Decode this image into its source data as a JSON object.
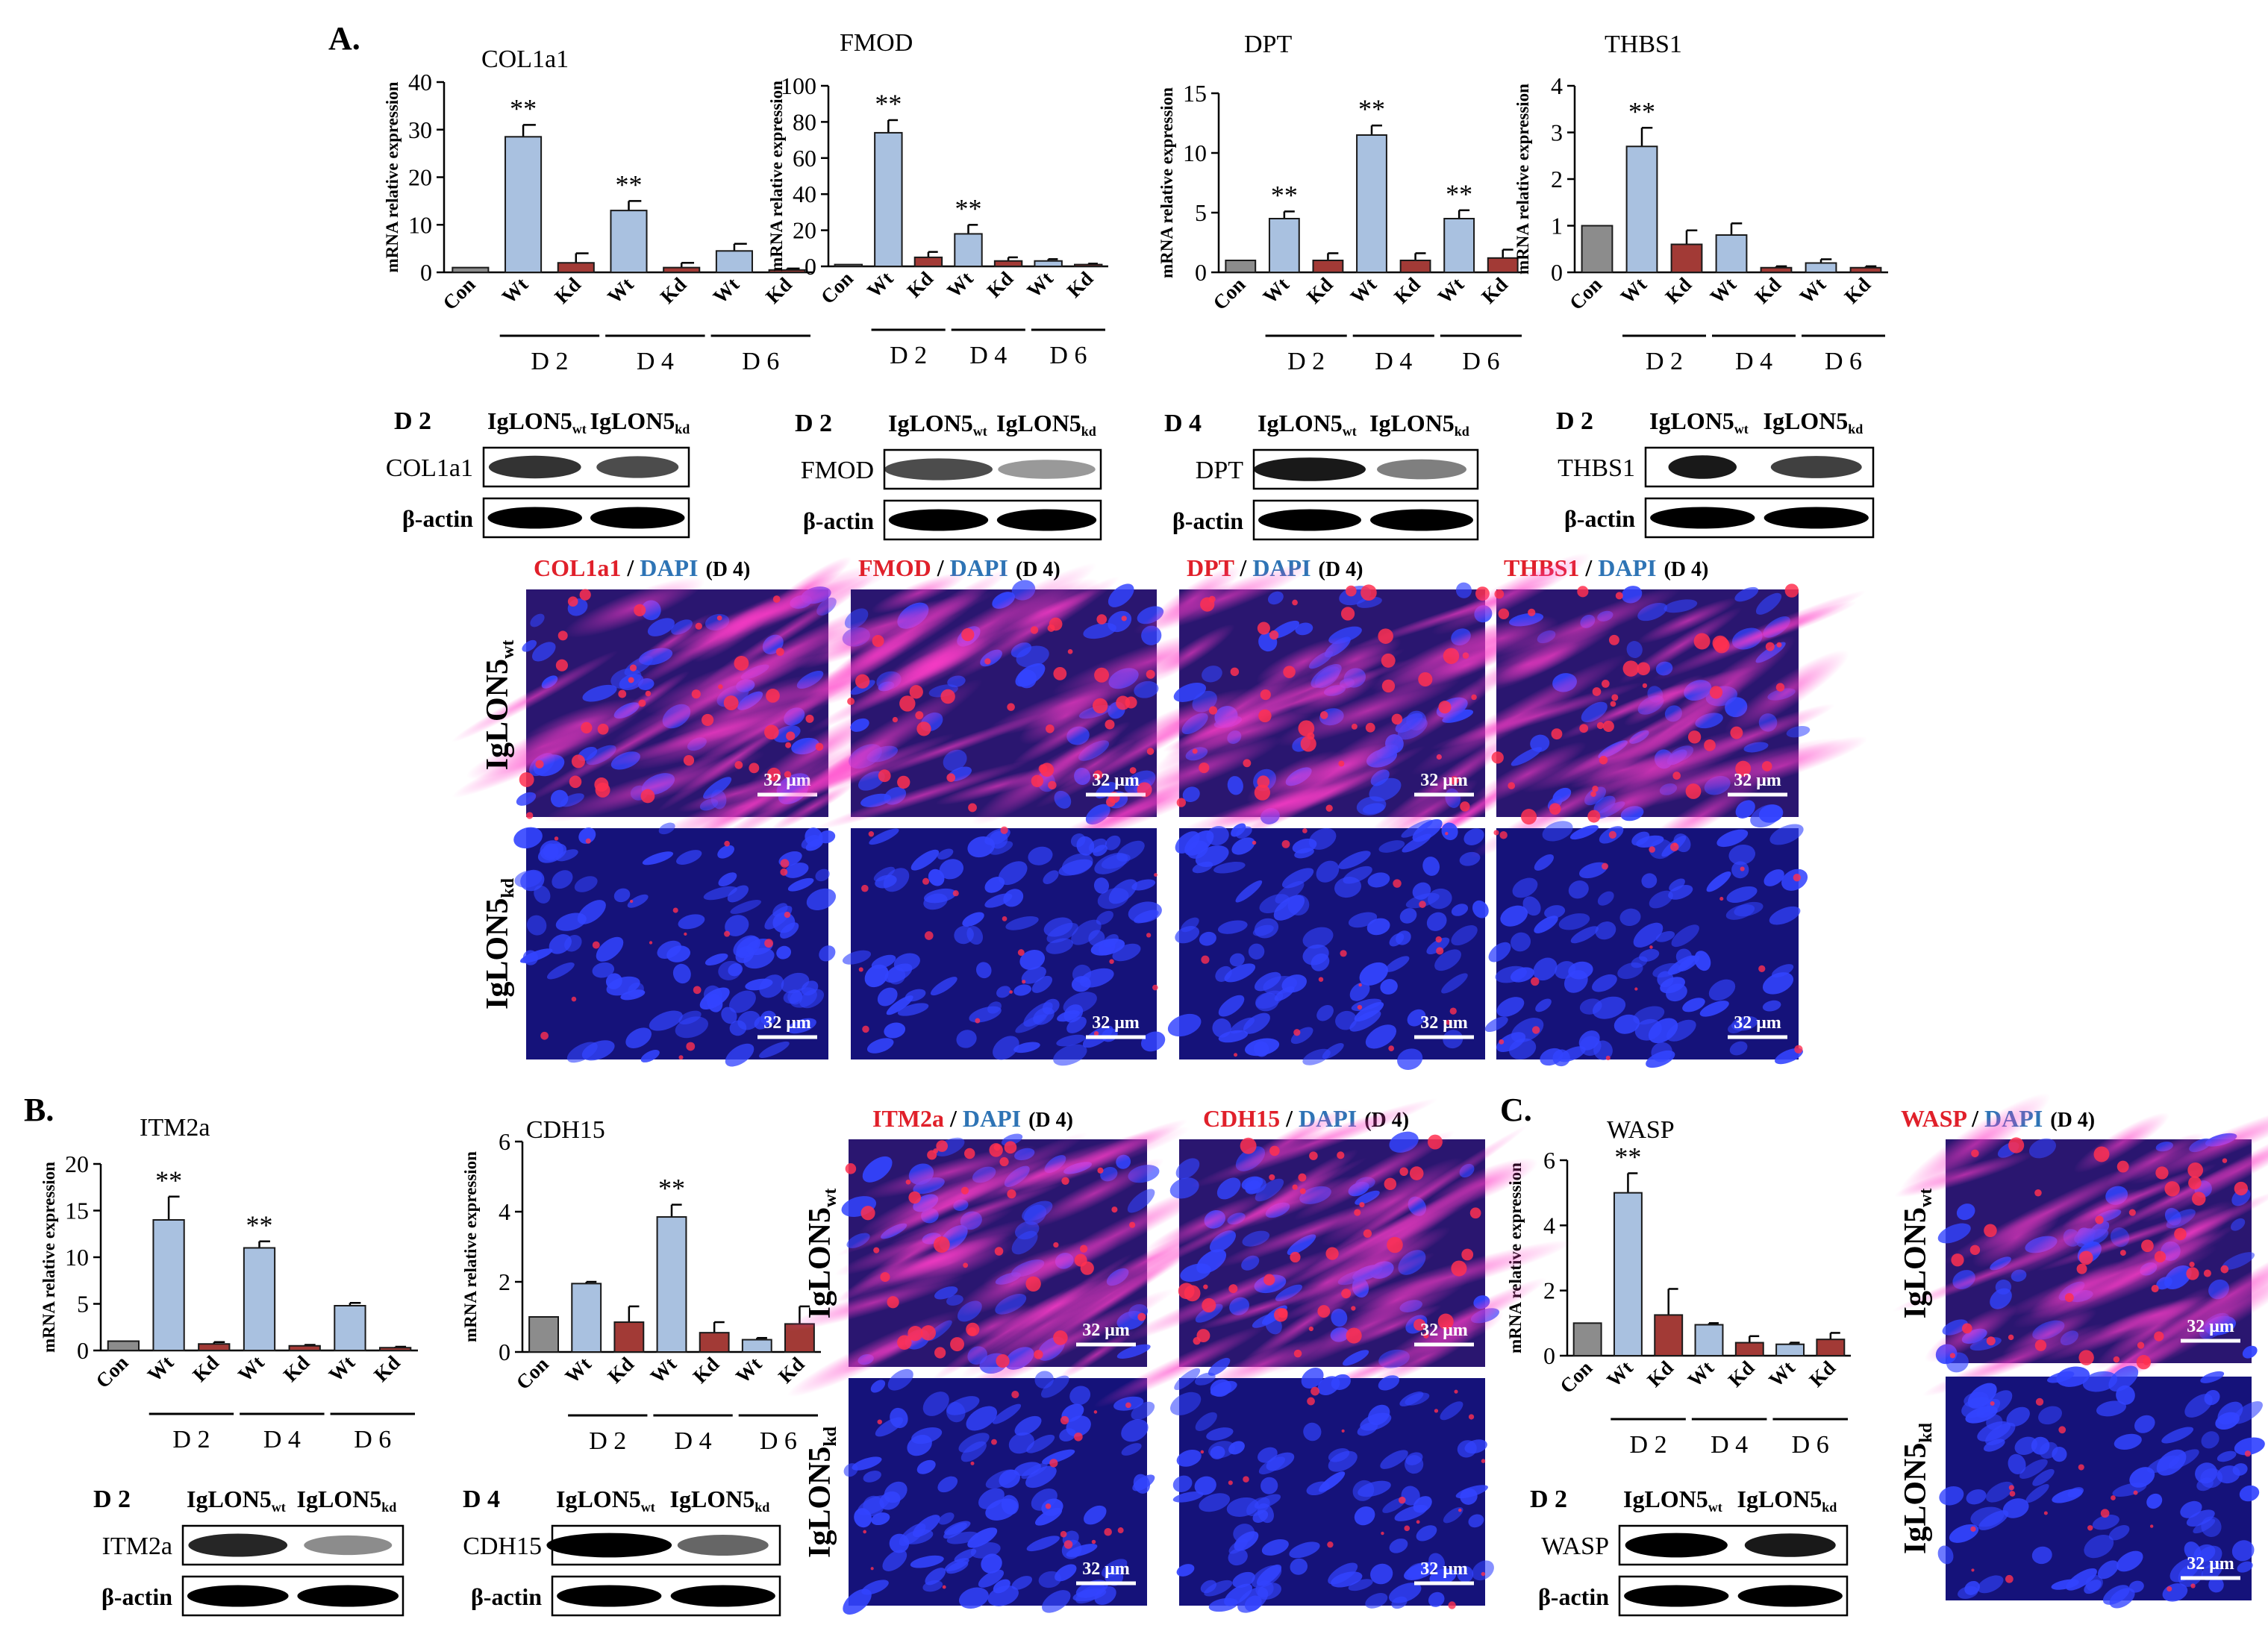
{
  "panels": [
    {
      "label": "A."
    },
    {
      "label": "B."
    },
    {
      "label": "C."
    }
  ],
  "common": {
    "y_axis_label": "mRNA relative expression",
    "categories": [
      "Con",
      "Wt",
      "Kd",
      "Wt",
      "Kd",
      "Wt",
      "Kd"
    ],
    "day_groups": [
      "D 2",
      "D 4",
      "D 6"
    ],
    "significance": "**",
    "beta_actin": "β-actin",
    "scale_bar": "32 μm",
    "wt_label": {
      "base": "IgLON5",
      "sub": "wt"
    },
    "kd_label": {
      "base": "IgLON5",
      "sub": "kd"
    },
    "stain_sep": " / ",
    "dapi": "DAPI",
    "stain_day": "(D 4)",
    "colors": {
      "con": "#8c8c8c",
      "wt": "#a9c1e0",
      "kd": "#a23a36",
      "stain_red": "#e0202a",
      "stain_blue": "#2e74b5"
    }
  },
  "chart_data": [
    {
      "type": "bar",
      "title": "COL1a1",
      "ylabel": "mRNA relative expression",
      "ylim": [
        0,
        40
      ],
      "yticks": [
        0,
        10,
        20,
        30,
        40
      ],
      "categories": [
        "Con",
        "Wt",
        "Kd",
        "Wt",
        "Kd",
        "Wt",
        "Kd"
      ],
      "groups": [
        "D 2",
        "D 4",
        "D 6"
      ],
      "values": [
        1,
        28.5,
        2,
        13,
        1,
        4.5,
        0.5
      ],
      "errors": [
        0,
        2.5,
        2,
        2,
        1,
        1.5,
        0.3
      ],
      "significant": [
        1,
        3
      ]
    },
    {
      "type": "bar",
      "title": "FMOD",
      "ylabel": "mRNA relative expression",
      "ylim": [
        0,
        100
      ],
      "yticks": [
        0,
        20,
        40,
        60,
        80,
        100
      ],
      "categories": [
        "Con",
        "Wt",
        "Kd",
        "Wt",
        "Kd",
        "Wt",
        "Kd"
      ],
      "groups": [
        "D 2",
        "D 4",
        "D 6"
      ],
      "values": [
        1,
        74,
        5,
        18,
        3,
        3,
        1
      ],
      "errors": [
        0,
        7,
        3,
        5,
        2,
        1,
        0.5
      ],
      "significant": [
        1,
        3
      ]
    },
    {
      "type": "bar",
      "title": "DPT",
      "ylabel": "mRNA relative expression",
      "ylim": [
        0,
        15
      ],
      "yticks": [
        0,
        5,
        10,
        15
      ],
      "categories": [
        "Con",
        "Wt",
        "Kd",
        "Wt",
        "Kd",
        "Wt",
        "Kd"
      ],
      "groups": [
        "D 2",
        "D 4",
        "D 6"
      ],
      "values": [
        1,
        4.5,
        1,
        11.5,
        1,
        4.5,
        1.2
      ],
      "errors": [
        0,
        0.6,
        0.6,
        0.8,
        0.6,
        0.7,
        0.7
      ],
      "significant": [
        1,
        3,
        5
      ]
    },
    {
      "type": "bar",
      "title": "THBS1",
      "ylabel": "mRNA relative expression",
      "ylim": [
        0,
        4
      ],
      "yticks": [
        0,
        1,
        2,
        3,
        4
      ],
      "categories": [
        "Con",
        "Wt",
        "Kd",
        "Wt",
        "Kd",
        "Wt",
        "Kd"
      ],
      "groups": [
        "D 2",
        "D 4",
        "D 6"
      ],
      "values": [
        1,
        2.7,
        0.6,
        0.8,
        0.1,
        0.2,
        0.1
      ],
      "errors": [
        0,
        0.4,
        0.3,
        0.25,
        0.03,
        0.08,
        0.03
      ],
      "significant": [
        1
      ]
    },
    {
      "type": "bar",
      "title": "ITM2a",
      "ylabel": "mRNA relative expression",
      "ylim": [
        0,
        20
      ],
      "yticks": [
        0,
        5,
        10,
        15,
        20
      ],
      "categories": [
        "Con",
        "Wt",
        "Kd",
        "Wt",
        "Kd",
        "Wt",
        "Kd"
      ],
      "groups": [
        "D 2",
        "D 4",
        "D 6"
      ],
      "values": [
        1,
        14,
        0.7,
        11,
        0.5,
        4.8,
        0.3
      ],
      "errors": [
        0,
        2.5,
        0.2,
        0.7,
        0.1,
        0.3,
        0.1
      ],
      "significant": [
        1,
        3
      ]
    },
    {
      "type": "bar",
      "title": "CDH15",
      "ylabel": "mRNA relative expression",
      "ylim": [
        0,
        6
      ],
      "yticks": [
        0,
        2,
        4,
        6
      ],
      "categories": [
        "Con",
        "Wt",
        "Kd",
        "Wt",
        "Kd",
        "Wt",
        "Kd"
      ],
      "groups": [
        "D 2",
        "D 4",
        "D 6"
      ],
      "values": [
        1,
        1.95,
        0.85,
        3.85,
        0.55,
        0.35,
        0.8
      ],
      "errors": [
        0,
        0.05,
        0.45,
        0.35,
        0.3,
        0.05,
        0.5
      ],
      "significant": [
        3
      ]
    },
    {
      "type": "bar",
      "title": "WASP",
      "ylabel": "mRNA relative expression",
      "ylim": [
        0,
        6
      ],
      "yticks": [
        0,
        2,
        4,
        6
      ],
      "categories": [
        "Con",
        "Wt",
        "Kd",
        "Wt",
        "Kd",
        "Wt",
        "Kd"
      ],
      "groups": [
        "D 2",
        "D 4",
        "D 6"
      ],
      "values": [
        1,
        5,
        1.25,
        0.95,
        0.4,
        0.35,
        0.5
      ],
      "errors": [
        0,
        0.6,
        0.8,
        0.05,
        0.2,
        0.05,
        0.2
      ],
      "significant": [
        1
      ]
    }
  ],
  "blots": [
    {
      "day": "D 2",
      "protein": "COL1a1"
    },
    {
      "day": "D 2",
      "protein": "FMOD"
    },
    {
      "day": "D 4",
      "protein": "DPT"
    },
    {
      "day": "D 2",
      "protein": "THBS1"
    },
    {
      "day": "D 2",
      "protein": "ITM2a"
    },
    {
      "day": "D 4",
      "protein": "CDH15"
    },
    {
      "day": "D 2",
      "protein": "WASP"
    }
  ],
  "stains": [
    {
      "marker": "COL1a1"
    },
    {
      "marker": "FMOD"
    },
    {
      "marker": "DPT"
    },
    {
      "marker": "THBS1"
    },
    {
      "marker": "ITM2a"
    },
    {
      "marker": "CDH15"
    },
    {
      "marker": "WASP"
    }
  ]
}
